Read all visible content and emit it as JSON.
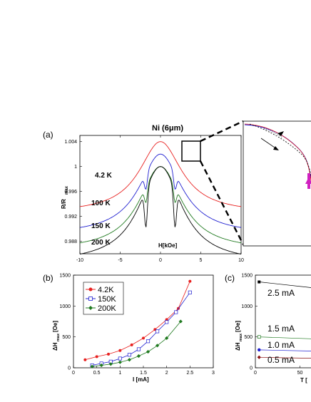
{
  "panels": {
    "a": {
      "tag": "(a)",
      "title": "Ni (6μm)",
      "ylabel_main": "R/R",
      "ylabel_sub": "max",
      "xlabel": "H[kOe]",
      "x_ticks": [
        "-10",
        "-5",
        "0",
        "5",
        "10"
      ],
      "y_ticks": [
        "1.004",
        "1",
        "0.996",
        "0.992",
        "0.988"
      ],
      "curve_labels": [
        {
          "text": "4.2 K",
          "color": "#e8201f"
        },
        {
          "text": "100 K",
          "color": "#1f1fd0"
        },
        {
          "text": "150 K",
          "color": "#207a20"
        },
        {
          "text": "200 K",
          "color": "#000000"
        }
      ]
    },
    "b": {
      "tag": "(b)",
      "ylabel_main": "ΔH",
      "ylabel_sub": "max",
      "ylabel_unit": "[Oe]",
      "xlabel": "I [mA]",
      "x_ticks": [
        "0",
        "0.5",
        "1",
        "1.5",
        "2",
        "2.5",
        "3"
      ],
      "y_ticks": [
        "1500",
        "1000",
        "500",
        "0"
      ],
      "legend": [
        "4.2K",
        "150K",
        "200K"
      ]
    },
    "c": {
      "tag": "(c)",
      "ylabel_main": "ΔH",
      "ylabel_sub": "max",
      "ylabel_unit": "[Oe]",
      "xlabel": "T [",
      "x_ticks": [
        "0",
        "50"
      ],
      "y_ticks": [
        "1500",
        "1000",
        "500",
        "0"
      ],
      "series_labels": [
        {
          "text": "2.5 mA",
          "color": "#000000"
        },
        {
          "text": "1.5 mA",
          "color": "#207a20"
        },
        {
          "text": "1.0 mA",
          "color": "#1f1fd0"
        },
        {
          "text": "0.5 mA",
          "color": "#8a1010"
        }
      ]
    }
  },
  "chart_data": [
    {
      "type": "line",
      "panel": "a",
      "title": "Ni (6μm)",
      "xlabel": "H[kOe]",
      "ylabel": "R/Rmax",
      "xlim": [
        -10,
        10
      ],
      "ylim": [
        0.986,
        1.005
      ],
      "series": [
        {
          "name": "4.2 K",
          "color": "#e8201f",
          "peak": 1.004,
          "wing": 0.9925
        },
        {
          "name": "100 K",
          "color": "#1f1fd0",
          "peak": 1.002,
          "wing": 0.989
        },
        {
          "name": "150 K",
          "color": "#207a20",
          "peak": 1.0,
          "wing": 0.9865
        },
        {
          "name": "200 K",
          "color": "#000000",
          "peak": 1.0,
          "wing": 0.9845
        }
      ]
    },
    {
      "type": "line",
      "panel": "b",
      "xlabel": "I [mA]",
      "ylabel": "ΔHmax [Oe]",
      "xlim": [
        0,
        3
      ],
      "ylim": [
        0,
        1500
      ],
      "series": [
        {
          "name": "4.2K",
          "color": "#e8201f",
          "x": [
            0.25,
            0.5,
            0.75,
            1.0,
            1.25,
            1.5,
            1.75,
            2.0,
            2.25,
            2.5
          ],
          "y": [
            130,
            180,
            220,
            280,
            370,
            480,
            620,
            780,
            960,
            1400
          ]
        },
        {
          "name": "150K",
          "color": "#1f1fd0",
          "x": [
            0.4,
            0.6,
            0.8,
            1.0,
            1.2,
            1.4,
            1.6,
            1.8,
            2.0,
            2.2,
            2.5
          ],
          "y": [
            40,
            70,
            100,
            150,
            210,
            300,
            430,
            590,
            740,
            900,
            1220
          ]
        },
        {
          "name": "200K",
          "color": "#207a20",
          "x": [
            0.4,
            0.6,
            0.8,
            1.0,
            1.2,
            1.4,
            1.6,
            1.8,
            2.0,
            2.3
          ],
          "y": [
            20,
            40,
            60,
            90,
            130,
            190,
            260,
            360,
            480,
            750
          ]
        }
      ]
    },
    {
      "type": "line",
      "panel": "c",
      "xlabel": "T [",
      "ylabel": "ΔHmax [Oe]",
      "xlim": [
        0,
        80
      ],
      "ylim": [
        0,
        1500
      ],
      "series": [
        {
          "name": "2.5 mA",
          "color": "#000000",
          "x": [
            4.2,
            80
          ],
          "y": [
            1390,
            1270
          ]
        },
        {
          "name": "1.5 mA",
          "color": "#207a20",
          "x": [
            4.2,
            80
          ],
          "y": [
            500,
            460
          ]
        },
        {
          "name": "1.0 mA",
          "color": "#1f1fd0",
          "x": [
            4.2,
            80
          ],
          "y": [
            290,
            265
          ]
        },
        {
          "name": "0.5 mA",
          "color": "#8a1010",
          "x": [
            4.2,
            80
          ],
          "y": [
            170,
            150
          ]
        }
      ]
    }
  ]
}
